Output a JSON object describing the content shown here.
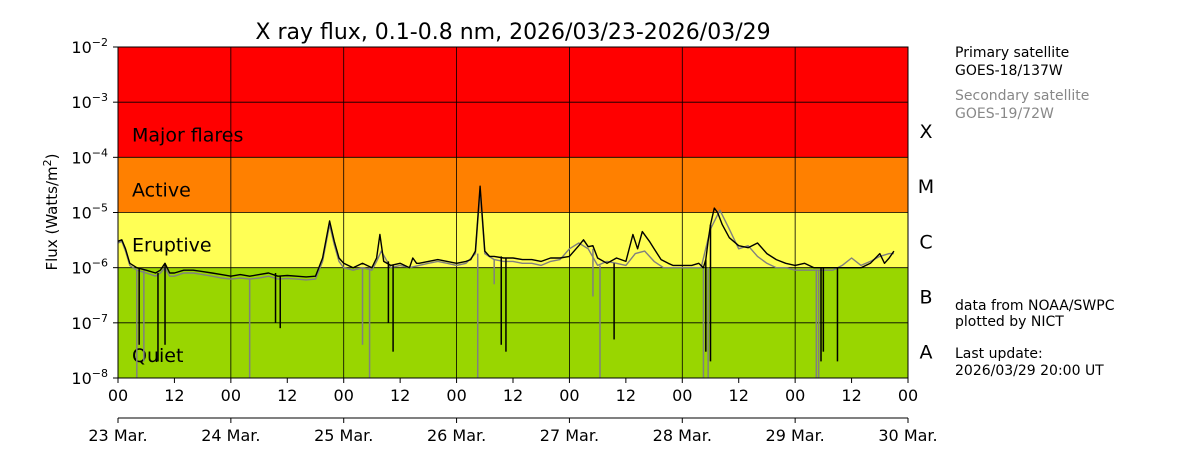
{
  "chart_data": {
    "type": "line",
    "title": "X ray flux, 0.1-0.8 nm, 2026/03/23-2026/03/29",
    "ylabel": "Flux (Watts/m",
    "ylabel_sup": "2",
    "ylabel_close": ")",
    "yscale": "log",
    "ylim": [
      1e-08,
      0.01
    ],
    "y_ticks": [
      {
        "exp": -8,
        "base": "10",
        "sup": "−8"
      },
      {
        "exp": -7,
        "base": "10",
        "sup": "−7"
      },
      {
        "exp": -6,
        "base": "10",
        "sup": "−6"
      },
      {
        "exp": -5,
        "base": "10",
        "sup": "−5"
      },
      {
        "exp": -4,
        "base": "10",
        "sup": "−4"
      },
      {
        "exp": -3,
        "base": "10",
        "sup": "−3"
      },
      {
        "exp": -2,
        "base": "10",
        "sup": "−2"
      }
    ],
    "x_unit": "hours since 2026-03-23 00:00 UT",
    "xlim": [
      0,
      168
    ],
    "hour_ticks": [
      "00",
      "12",
      "00",
      "12",
      "00",
      "12",
      "00",
      "12",
      "00",
      "12",
      "00",
      "12",
      "00",
      "12",
      "00"
    ],
    "date_ticks": [
      "23 Mar.",
      "24 Mar.",
      "25 Mar.",
      "26 Mar.",
      "27 Mar.",
      "28 Mar.",
      "29 Mar.",
      "30 Mar."
    ],
    "grid": true,
    "bands": [
      {
        "label": "Major flares",
        "from": 0.0001,
        "to": 0.01,
        "color": "#ff0000"
      },
      {
        "label": "Active",
        "from": 1e-05,
        "to": 0.0001,
        "color": "#ff8000"
      },
      {
        "label": "Eruptive",
        "from": 1e-06,
        "to": 1e-05,
        "color": "#ffff55"
      },
      {
        "label": "Quiet",
        "from": 1e-08,
        "to": 1e-06,
        "color": "#99d600"
      }
    ],
    "classes": [
      {
        "label": "X",
        "level": 0.0003
      },
      {
        "label": "M",
        "level": 3e-05
      },
      {
        "label": "C",
        "level": 3e-06
      },
      {
        "label": "B",
        "level": 3e-07
      },
      {
        "label": "A",
        "level": 3e-08
      }
    ],
    "series": [
      {
        "name": "GOES-18/137W",
        "color": "#000000",
        "x": [
          0,
          0.8,
          1.6,
          2.5,
          4,
          6,
          8,
          9,
          10,
          11,
          12,
          14,
          16,
          18,
          20,
          22,
          24,
          26,
          28,
          30,
          32,
          34,
          36,
          38,
          40,
          42,
          43.5,
          45,
          46,
          47,
          48,
          50,
          52,
          54,
          55,
          55.7,
          56.5,
          58,
          60,
          62,
          62.7,
          63.5,
          64,
          66,
          68,
          70,
          72,
          74,
          75,
          76,
          77,
          78,
          79,
          80,
          82,
          84,
          86,
          88,
          90,
          92,
          94,
          96,
          98,
          99,
          100,
          101,
          102,
          104,
          106,
          108,
          109.5,
          110.5,
          111.5,
          113,
          114,
          115.5,
          117,
          118,
          119,
          120,
          122,
          123.5,
          124.5,
          125,
          125.5,
          126,
          126.8,
          127.5,
          128.5,
          130,
          132,
          134,
          136,
          138,
          140,
          142,
          144,
          146,
          148,
          150,
          152,
          154,
          156,
          158,
          160,
          162,
          163,
          164,
          165
        ],
        "y": [
          3e-06,
          3.2e-06,
          2.2e-06,
          1.2e-06,
          1e-06,
          9e-07,
          8e-07,
          9e-07,
          1.2e-06,
          8e-07,
          8e-07,
          9e-07,
          9e-07,
          8.5e-07,
          8e-07,
          7.5e-07,
          7e-07,
          7.5e-07,
          7e-07,
          7.5e-07,
          8e-07,
          7e-07,
          7.2e-07,
          7e-07,
          6.8e-07,
          7e-07,
          1.5e-06,
          7e-06,
          3e-06,
          1.5e-06,
          1.2e-06,
          1e-06,
          1.2e-06,
          1e-06,
          1.5e-06,
          4e-06,
          1.3e-06,
          1.1e-06,
          1.2e-06,
          1e-06,
          1.5e-06,
          1.2e-06,
          1.2e-06,
          1.3e-06,
          1.4e-06,
          1.3e-06,
          1.2e-06,
          1.3e-06,
          1.4e-06,
          2e-06,
          3e-05,
          2e-06,
          1.6e-06,
          1.6e-06,
          1.5e-06,
          1.5e-06,
          1.4e-06,
          1.4e-06,
          1.3e-06,
          1.5e-06,
          1.5e-06,
          1.6e-06,
          2.5e-06,
          3.2e-06,
          2.4e-06,
          2.5e-06,
          1.5e-06,
          1.2e-06,
          1.5e-06,
          1.3e-06,
          4e-06,
          2.2e-06,
          4.5e-06,
          3e-06,
          2.2e-06,
          1.4e-06,
          1.2e-06,
          1.1e-06,
          1.1e-06,
          1.1e-06,
          1.1e-06,
          1.2e-06,
          1e-06,
          1.4e-06,
          3e-06,
          6e-06,
          1.2e-05,
          1e-05,
          6e-06,
          3.5e-06,
          2.5e-06,
          2.3e-06,
          2.8e-06,
          1.8e-06,
          1.4e-06,
          1.2e-06,
          1.1e-06,
          1.2e-06,
          1e-06,
          1e-06,
          1e-06,
          1e-06,
          1e-06,
          1e-06,
          1.2e-06,
          1.8e-06,
          1.2e-06,
          1.5e-06,
          2e-06
        ],
        "dips": [
          [
            4.5,
            4e-08
          ],
          [
            8.5,
            2e-08
          ],
          [
            10,
            4e-08
          ],
          [
            33.5,
            1e-07
          ],
          [
            34.5,
            8e-08
          ],
          [
            57.5,
            1e-07
          ],
          [
            58.5,
            3e-08
          ],
          [
            81.5,
            4e-08
          ],
          [
            82.5,
            3e-08
          ],
          [
            105.5,
            5e-08
          ],
          [
            125,
            3e-08
          ],
          [
            126,
            2e-08
          ],
          [
            149.5,
            2e-08
          ],
          [
            150,
            3e-08
          ],
          [
            153,
            2e-08
          ]
        ]
      },
      {
        "name": "GOES-19/72W",
        "color": "#808080",
        "x": [
          0,
          0.8,
          1.6,
          2.5,
          4,
          6,
          8,
          9,
          10,
          11,
          12,
          14,
          16,
          18,
          20,
          22,
          24,
          26,
          28,
          30,
          32,
          34,
          36,
          38,
          40,
          42,
          43.5,
          45,
          46,
          47,
          48,
          50,
          52,
          54,
          55,
          56,
          58,
          60,
          62,
          64,
          66,
          68,
          70,
          72,
          74,
          76,
          77,
          78,
          80,
          82,
          84,
          86,
          88,
          90,
          92,
          94,
          96,
          98,
          100,
          102,
          104,
          106,
          108,
          110,
          112,
          114,
          116,
          118,
          120,
          122,
          124,
          126,
          128,
          130,
          132,
          134,
          136,
          138,
          140,
          142,
          144,
          146,
          148,
          150,
          152,
          154,
          156,
          158,
          160,
          162,
          164,
          165
        ],
        "y": [
          2.8e-06,
          3e-06,
          2e-06,
          1.1e-06,
          9e-07,
          8e-07,
          7e-07,
          8e-07,
          1e-06,
          7e-07,
          7e-07,
          8e-07,
          8e-07,
          7.5e-07,
          7e-07,
          6.5e-07,
          6.2e-07,
          6.5e-07,
          6.2e-07,
          6.5e-07,
          7e-07,
          6.2e-07,
          6.4e-07,
          6.2e-07,
          6e-07,
          6.2e-07,
          1.3e-06,
          6e-06,
          2.6e-06,
          1.3e-06,
          1e-06,
          9e-07,
          1e-06,
          9e-07,
          1.3e-06,
          2e-06,
          1e-06,
          1.1e-06,
          1e-06,
          1.1e-06,
          1.2e-06,
          1.3e-06,
          1.2e-06,
          1.1e-06,
          1.2e-06,
          1.8e-06,
          2.5e-05,
          1.8e-06,
          1.4e-06,
          1.3e-06,
          1.3e-06,
          1.2e-06,
          1.2e-06,
          1.1e-06,
          1.3e-06,
          1.4e-06,
          2.2e-06,
          2.8e-06,
          2.2e-06,
          1.1e-06,
          1.3e-06,
          1.2e-06,
          1.1e-06,
          1.8e-06,
          2e-06,
          1.3e-06,
          1e-06,
          1e-06,
          1e-06,
          1e-06,
          1e-06,
          5e-06,
          1.1e-05,
          5e-06,
          2.2e-06,
          2.5e-06,
          1.6e-06,
          1.2e-06,
          1e-06,
          1e-06,
          9e-07,
          9e-07,
          9e-07,
          9e-07,
          9e-07,
          1.1e-06,
          1.5e-06,
          1.1e-06,
          1.3e-06,
          1.6e-06,
          1.8e-06,
          1.8e-06
        ],
        "dips": [
          [
            4,
            1e-08
          ],
          [
            5.5,
            2e-08
          ],
          [
            28,
            1e-08
          ],
          [
            52,
            4e-08
          ],
          [
            53.5,
            1e-08
          ],
          [
            76.5,
            1e-08
          ],
          [
            80,
            5e-07
          ],
          [
            101,
            3e-07
          ],
          [
            102.5,
            1e-08
          ],
          [
            124.5,
            1e-08
          ],
          [
            125.5,
            1e-08
          ],
          [
            148.5,
            1e-08
          ],
          [
            149,
            1e-08
          ]
        ]
      }
    ]
  },
  "sidebar": {
    "primary_label": "Primary satellite",
    "primary_sat": "GOES-18/137W",
    "secondary_label": "Secondary satellite",
    "secondary_sat": "GOES-19/72W",
    "credit_line1": "data from NOAA/SWPC",
    "credit_line2": "plotted by NICT",
    "update_label": "Last update:",
    "update_value": "2026/03/29 20:00 UT"
  }
}
